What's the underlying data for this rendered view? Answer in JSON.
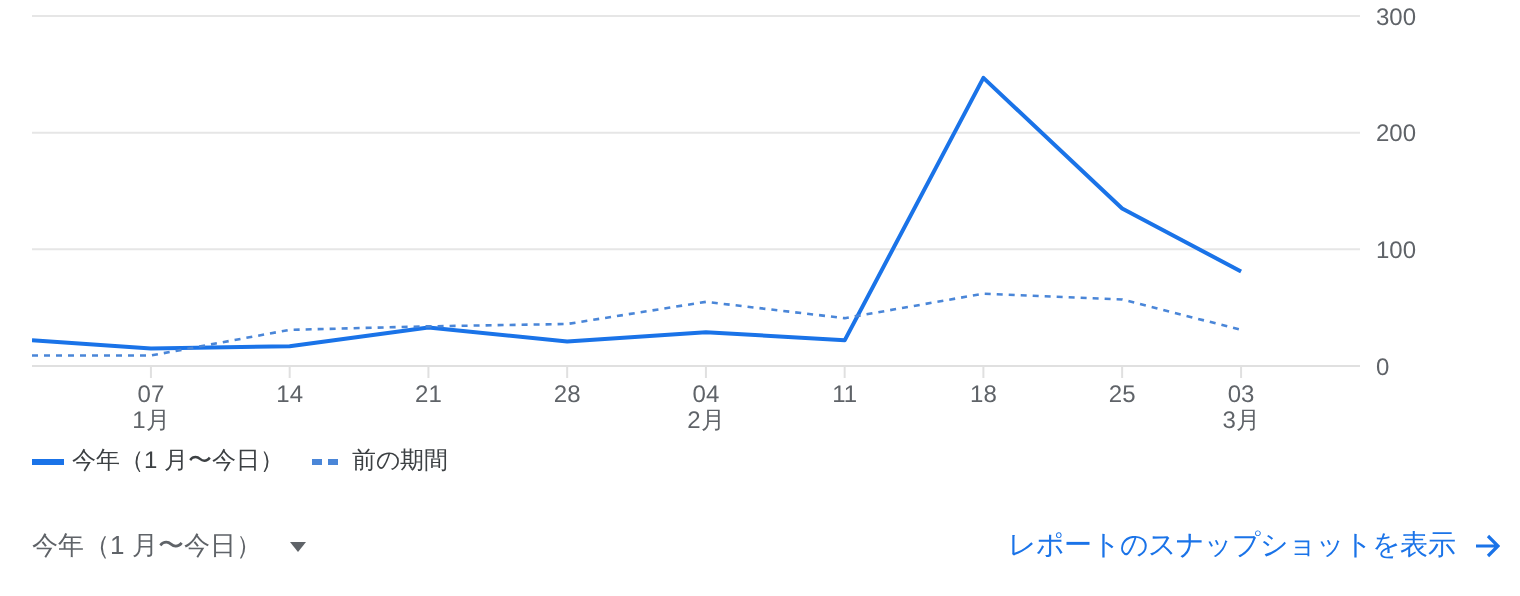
{
  "chart_data": {
    "type": "line",
    "x": [
      "--01-01",
      "--01-07",
      "--01-14",
      "--01-21",
      "--01-28",
      "--02-04",
      "--02-11",
      "--02-18",
      "--02-25",
      "--03-03"
    ],
    "series": [
      {
        "name": "今年（1 月〜今日）",
        "color": "#1a73e8",
        "line_style": "solid",
        "values": [
          22,
          15,
          17,
          33,
          21,
          29,
          22,
          247,
          135,
          81
        ]
      },
      {
        "name": "前の期間",
        "color": "#4a86d8",
        "line_style": "dashed",
        "values": [
          9,
          9,
          31,
          34,
          36,
          55,
          41,
          62,
          57,
          31
        ]
      }
    ],
    "xlim": [
      "--01-01",
      "--03-09"
    ],
    "xticks": [
      {
        "value": "--01-07",
        "label": "07\n1月"
      },
      {
        "value": "--01-14",
        "label": "14"
      },
      {
        "value": "--01-21",
        "label": "21"
      },
      {
        "value": "--01-28",
        "label": "28"
      },
      {
        "value": "--02-04",
        "label": "04\n2月"
      },
      {
        "value": "--02-11",
        "label": "11"
      },
      {
        "value": "--02-18",
        "label": "18"
      },
      {
        "value": "--02-25",
        "label": "25"
      },
      {
        "value": "--03-03",
        "label": "03\n3月"
      }
    ],
    "ylim": [
      0,
      300
    ],
    "yticks": [
      0,
      100,
      200,
      300
    ],
    "grid": "y",
    "legend": "bottom left",
    "marker": "none",
    "annotations": [
      "今年（1 月〜今日）",
      "レポートのスナップショットを表示"
    ]
  }
}
